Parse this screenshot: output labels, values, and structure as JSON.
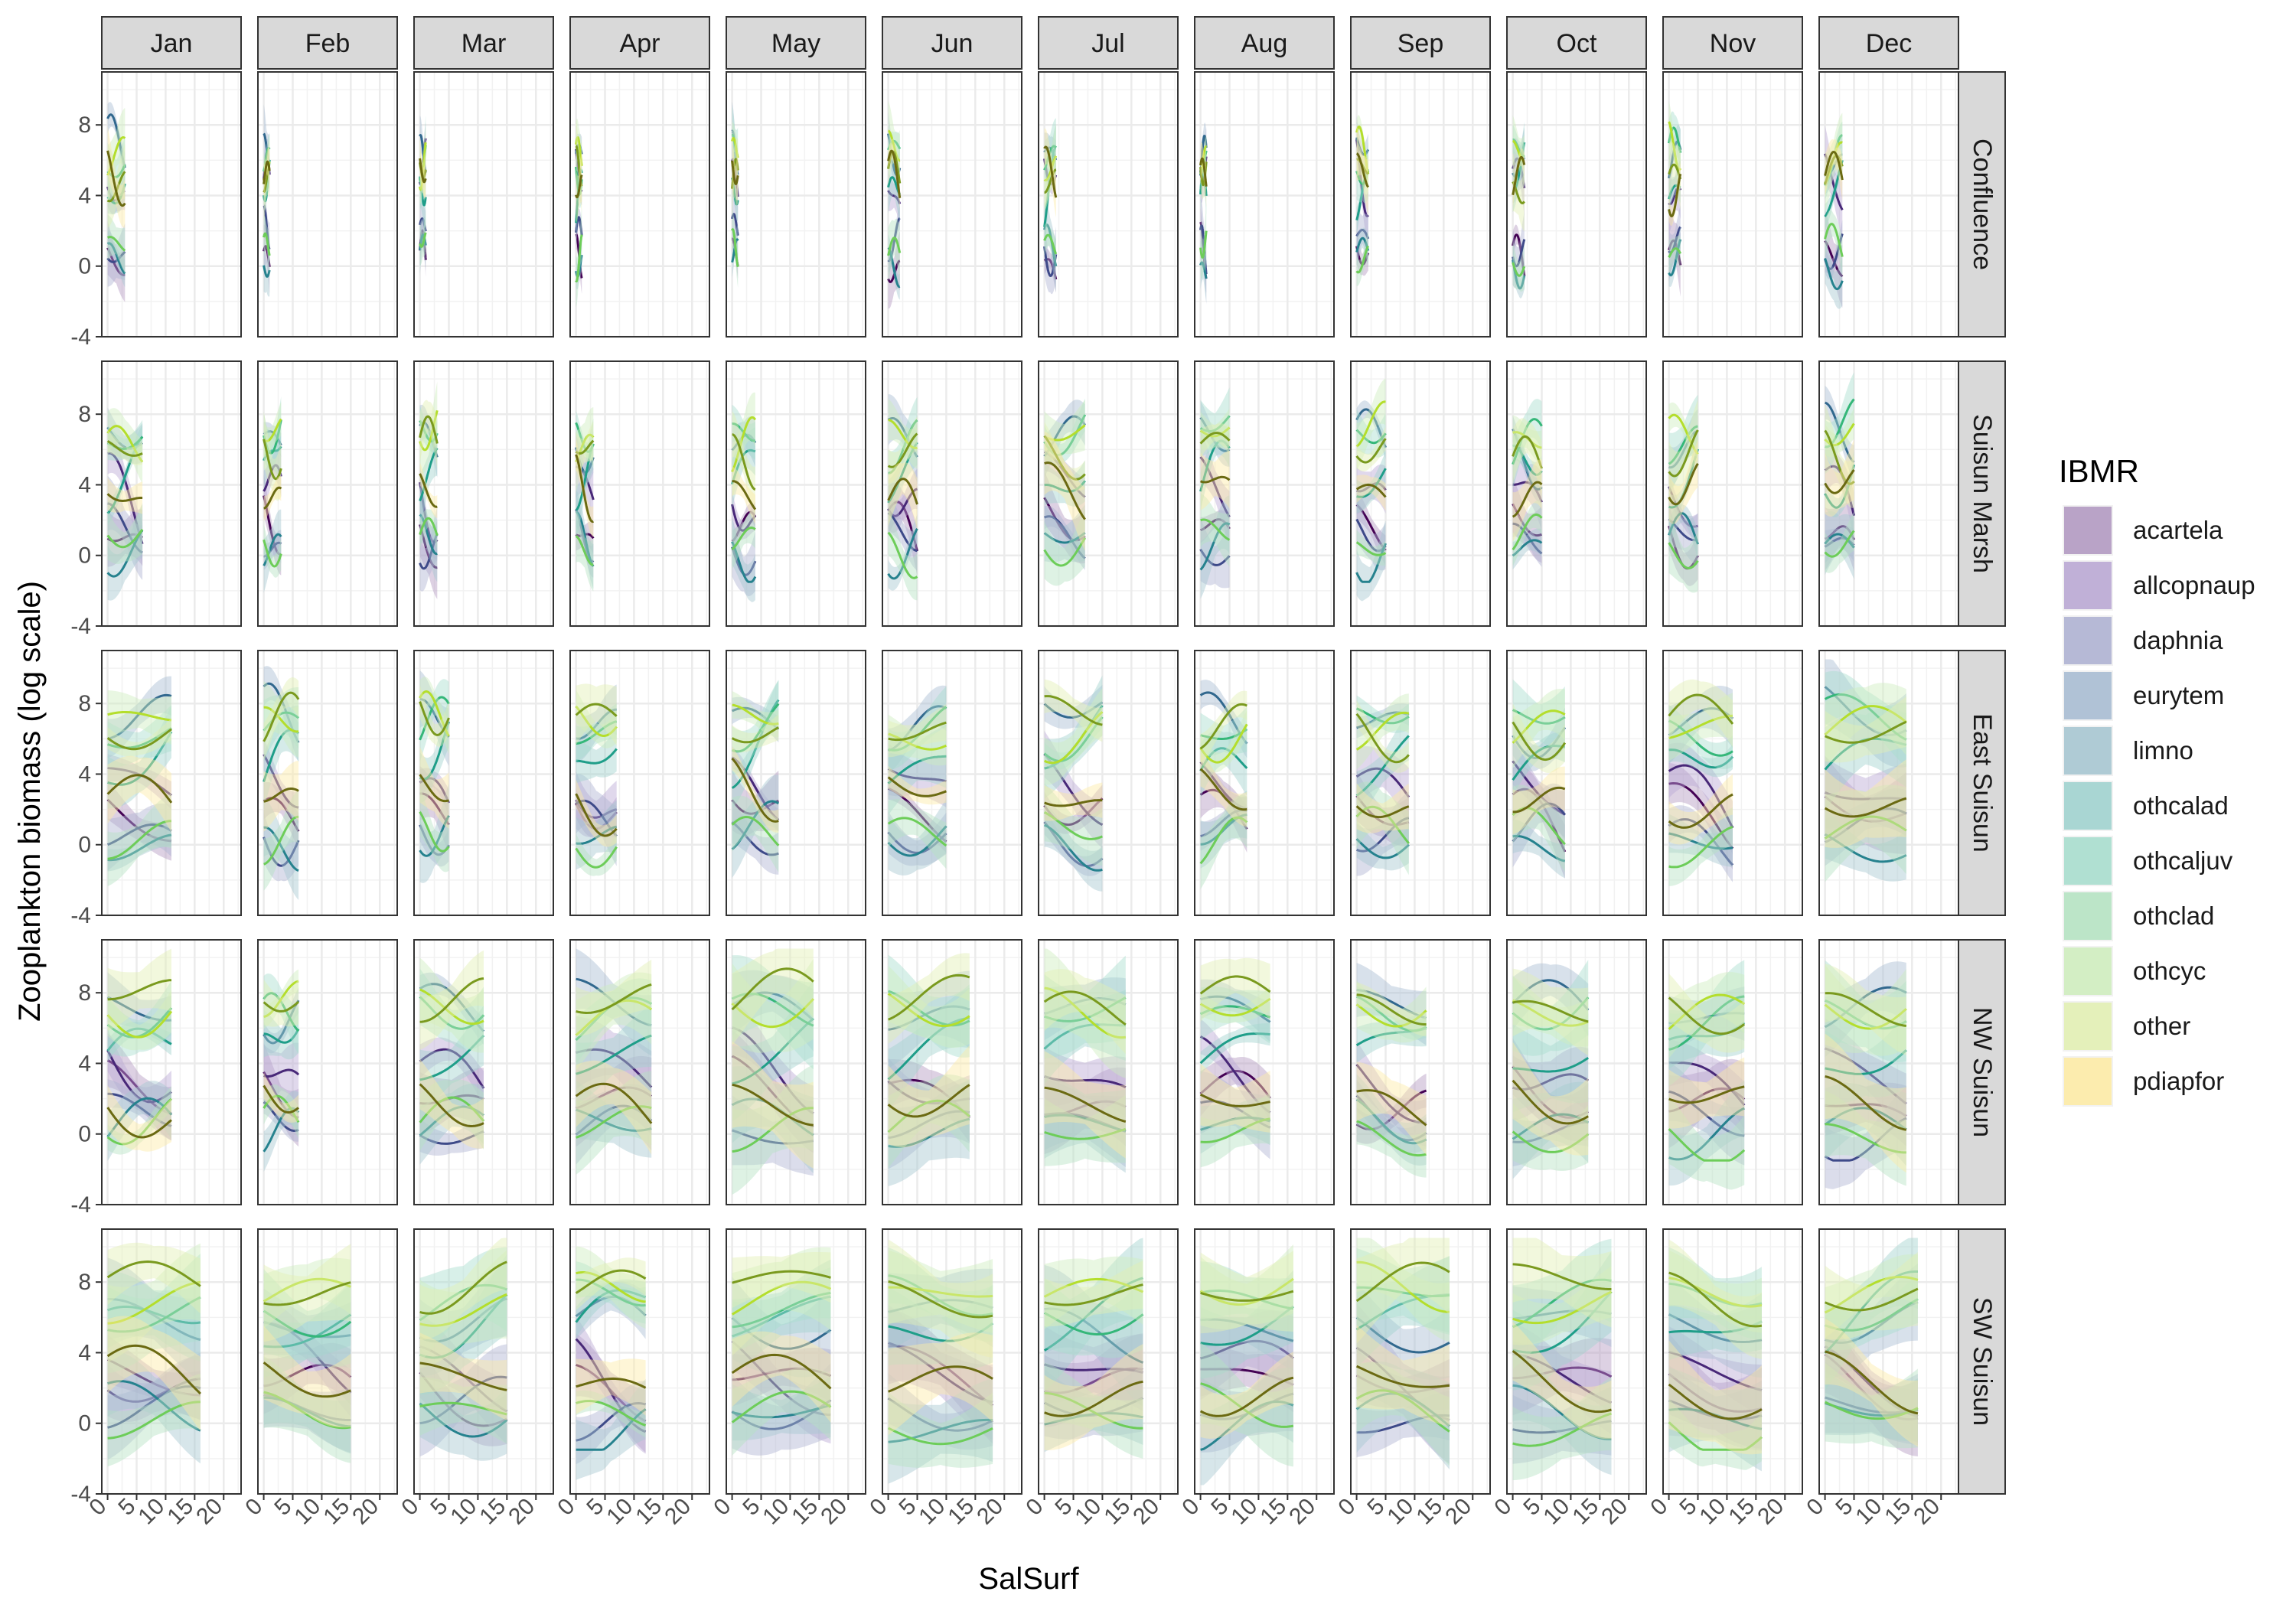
{
  "chart_data": {
    "type": "line",
    "xlabel": "SalSurf",
    "ylabel": "Zooplankton biomass (log scale)",
    "xlim": [
      -1,
      23
    ],
    "ylim": [
      -4,
      11
    ],
    "x_ticks": [
      0,
      5,
      10,
      15,
      20
    ],
    "y_ticks": [
      -4,
      0,
      4,
      8
    ],
    "grid": true,
    "legend": {
      "title": "IBMR",
      "position": "right"
    },
    "col_facets": [
      "Jan",
      "Feb",
      "Mar",
      "Apr",
      "May",
      "Jun",
      "Jul",
      "Aug",
      "Sep",
      "Oct",
      "Nov",
      "Dec"
    ],
    "row_facets": [
      "Confluence",
      "Suisun Marsh",
      "East Suisun",
      "NW Suisun",
      "SW Suisun"
    ],
    "sal_max": {
      "Confluence": [
        3,
        1,
        1,
        1,
        1,
        2,
        2,
        1,
        2,
        2,
        2,
        3
      ],
      "Suisun Marsh": [
        6,
        3,
        3,
        3,
        4,
        5,
        7,
        5,
        5,
        5,
        5,
        5
      ],
      "East Suisun": [
        11,
        6,
        5,
        7,
        8,
        10,
        10,
        8,
        9,
        9,
        11,
        14
      ],
      "NW Suisun": [
        11,
        6,
        11,
        13,
        14,
        14,
        14,
        12,
        12,
        13,
        13,
        14
      ],
      "SW Suisun": [
        16,
        15,
        15,
        12,
        17,
        18,
        17,
        16,
        16,
        17,
        16,
        16
      ]
    },
    "series": [
      {
        "name": "acartela",
        "color": "#440154",
        "fill": "#B39AC2",
        "base": {
          "Confluence": 1.0,
          "Suisun Marsh": 2.0,
          "East Suisun": 2.5,
          "NW Suisun": 2.5,
          "SW Suisun": 3.0
        },
        "slope": -0.15
      },
      {
        "name": "allcopnaup",
        "color": "#482878",
        "fill": "#BAA9D4",
        "base": {
          "Confluence": 5.5,
          "Suisun Marsh": 4.5,
          "East Suisun": 4.0,
          "NW Suisun": 4.0,
          "SW Suisun": 4.0
        },
        "slope": -0.2
      },
      {
        "name": "daphnia",
        "color": "#3E4A89",
        "fill": "#AFB3D3",
        "base": {
          "Confluence": 1.5,
          "Suisun Marsh": 1.0,
          "East Suisun": 1.0,
          "NW Suisun": 0.8,
          "SW Suisun": 0.8
        },
        "slope": -0.04
      },
      {
        "name": "eurytem",
        "color": "#31688E",
        "fill": "#A9BDD3",
        "base": {
          "Confluence": 6.5,
          "Suisun Marsh": 6.5,
          "East Suisun": 7.5,
          "NW Suisun": 7.0,
          "SW Suisun": 6.0
        },
        "slope": -0.05
      },
      {
        "name": "limno",
        "color": "#26828E",
        "fill": "#A7C7D1",
        "base": {
          "Confluence": 0.3,
          "Suisun Marsh": 0.5,
          "East Suisun": 0.5,
          "NW Suisun": 0.3,
          "SW Suisun": 0.3
        },
        "slope": 0.0
      },
      {
        "name": "othcalad",
        "color": "#1F9E89",
        "fill": "#A1D3CF",
        "base": {
          "Confluence": 4.0,
          "Suisun Marsh": 4.0,
          "East Suisun": 4.0,
          "NW Suisun": 4.0,
          "SW Suisun": 5.0
        },
        "slope": 0.2
      },
      {
        "name": "othcaljuv",
        "color": "#35B779",
        "fill": "#A8DECE",
        "base": {
          "Confluence": 6.0,
          "Suisun Marsh": 6.5,
          "East Suisun": 6.5,
          "NW Suisun": 6.5,
          "SW Suisun": 6.5
        },
        "slope": 0.05
      },
      {
        "name": "othclad",
        "color": "#6DCD59",
        "fill": "#B6E3C3",
        "base": {
          "Confluence": 0.8,
          "Suisun Marsh": 0.8,
          "East Suisun": 0.5,
          "NW Suisun": 0.3,
          "SW Suisun": 0.3
        },
        "slope": 0.0
      },
      {
        "name": "othcyc",
        "color": "#B4DE2C",
        "fill": "#CFEDBF",
        "base": {
          "Confluence": 6.0,
          "Suisun Marsh": 6.5,
          "East Suisun": 6.5,
          "NW Suisun": 6.8,
          "SW Suisun": 7.0
        },
        "slope": 0.03
      },
      {
        "name": "other",
        "color": "#7A9A1E",
        "fill": "#E2F0B4",
        "base": {
          "Confluence": 5.0,
          "Suisun Marsh": 6.0,
          "East Suisun": 7.0,
          "NW Suisun": 7.5,
          "SW Suisun": 7.8
        },
        "slope": 0.0
      },
      {
        "name": "pdiapfor",
        "color": "#6B6A12",
        "fill": "#FDEBA6",
        "base": {
          "Confluence": 5.0,
          "Suisun Marsh": 4.0,
          "East Suisun": 3.0,
          "NW Suisun": 2.0,
          "SW Suisun": 2.5
        },
        "slope": -0.08
      }
    ]
  }
}
